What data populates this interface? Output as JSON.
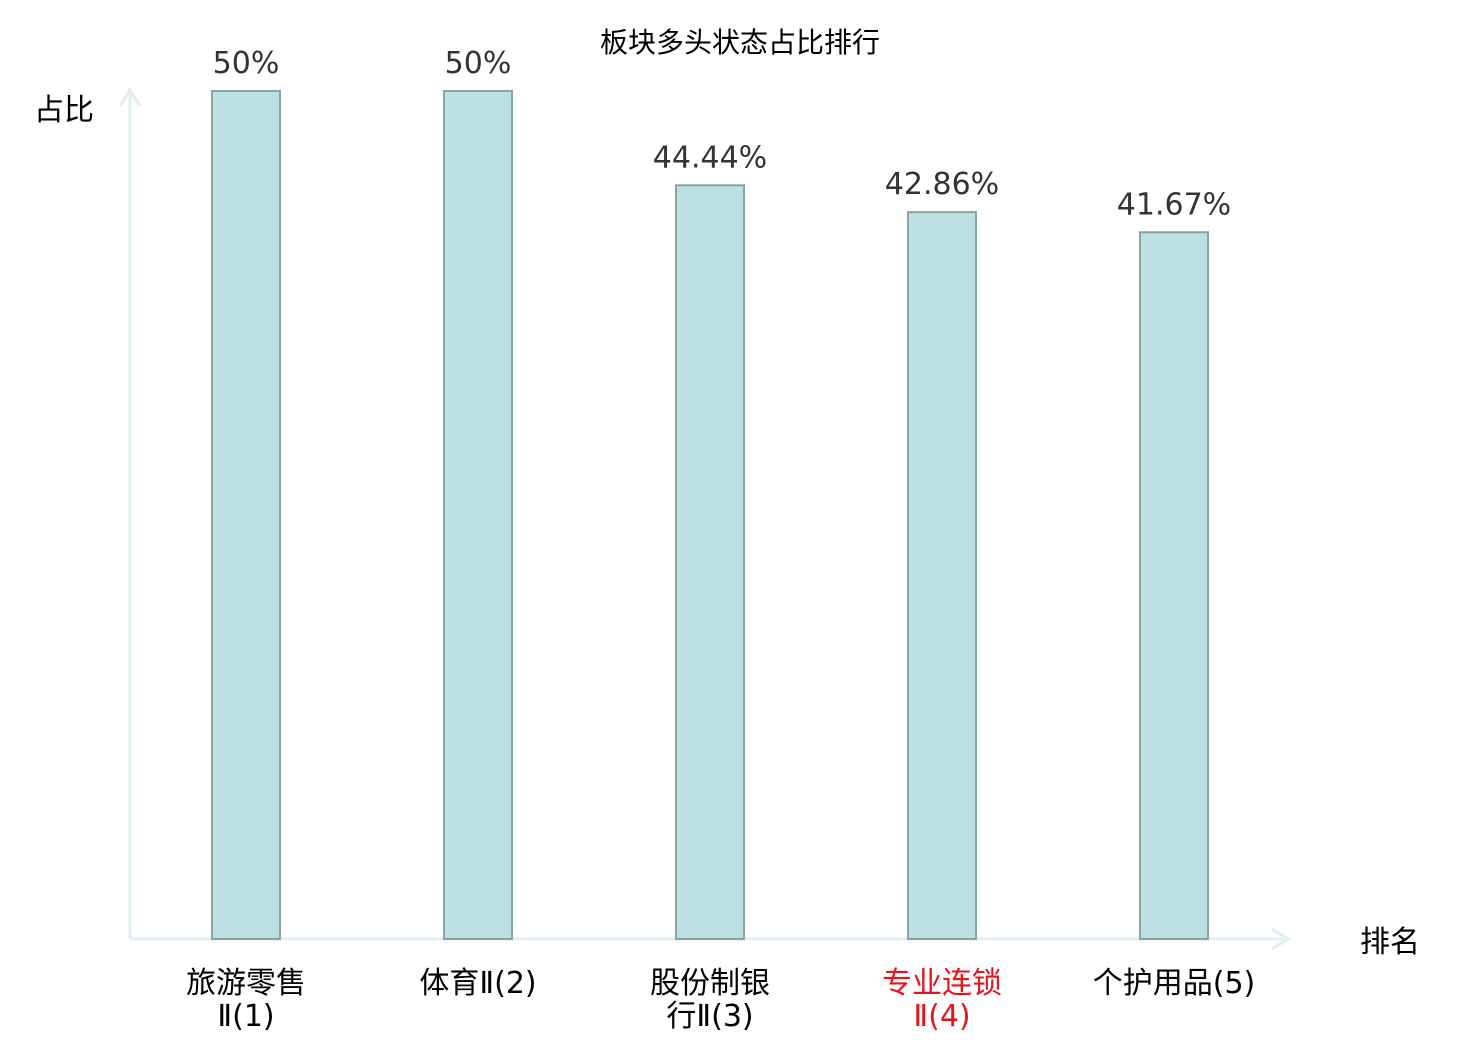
{
  "chart_data": {
    "type": "bar",
    "title": "板块多头状态占比排行",
    "ylabel": "占比",
    "xlabel": "排名",
    "categories": [
      {
        "line1": "旅游零售",
        "line2": "Ⅱ(1)",
        "highlight": false
      },
      {
        "line1": "体育Ⅱ(2)",
        "line2": "",
        "highlight": false
      },
      {
        "line1": "股份制银",
        "line2": "行Ⅱ(3)",
        "highlight": false
      },
      {
        "line1": "专业连锁",
        "line2": "Ⅱ(4)",
        "highlight": true
      },
      {
        "line1": "个护用品(5)",
        "line2": "",
        "highlight": false
      }
    ],
    "values": [
      50,
      50,
      44.44,
      42.86,
      41.67
    ],
    "value_labels": [
      "50%",
      "50%",
      "44.44%",
      "42.86%",
      "41.67%"
    ],
    "ylim": [
      0,
      50
    ],
    "grid": false,
    "colors": {
      "bar_fill": "#bde0e2",
      "bar_stroke": "#86a3a5",
      "axis": "#dff0ee",
      "highlight_text": "#e8141c",
      "text": "#000000",
      "value_text": "#333333"
    }
  }
}
